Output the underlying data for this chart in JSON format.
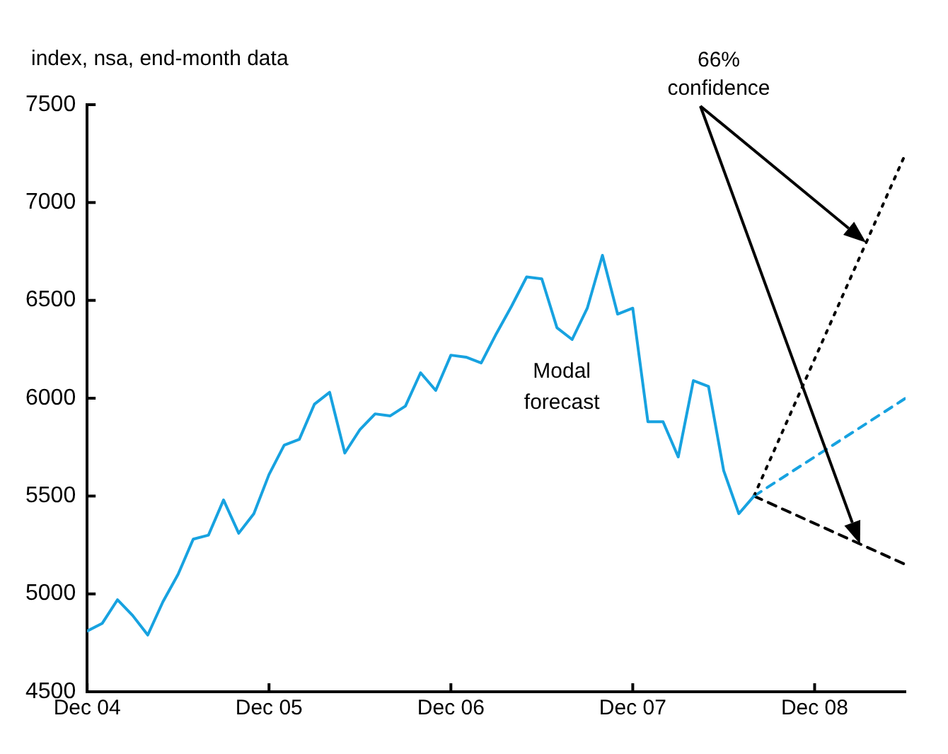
{
  "chart_data": {
    "type": "line",
    "ylabel": "index, nsa, end-month data",
    "xlim": [
      "2004-12",
      "2009-06"
    ],
    "xticks": [
      {
        "value": "2004-12",
        "label": "Dec 04"
      },
      {
        "value": "2005-12",
        "label": "Dec 05"
      },
      {
        "value": "2006-12",
        "label": "Dec 06"
      },
      {
        "value": "2007-12",
        "label": "Dec 07"
      },
      {
        "value": "2008-12",
        "label": "Dec 08"
      }
    ],
    "ylim": [
      4500,
      7500
    ],
    "yticks": [
      4500,
      5000,
      5500,
      6000,
      6500,
      7000,
      7500
    ],
    "grid": false,
    "legend": false,
    "marker": "none",
    "annotations": [
      "66% confidence",
      "Modal forecast"
    ],
    "series": [
      {
        "color": "#17a2e0",
        "line_style": "solid",
        "x": [
          "2004-12",
          "2005-01",
          "2005-02",
          "2005-03",
          "2005-04",
          "2005-05",
          "2005-06",
          "2005-07",
          "2005-08",
          "2005-09",
          "2005-10",
          "2005-11",
          "2005-12",
          "2006-01",
          "2006-02",
          "2006-03",
          "2006-04",
          "2006-05",
          "2006-06",
          "2006-07",
          "2006-08",
          "2006-09",
          "2006-10",
          "2006-11",
          "2006-12",
          "2007-01",
          "2007-02",
          "2007-03",
          "2007-04",
          "2007-05",
          "2007-06",
          "2007-07",
          "2007-08",
          "2007-09",
          "2007-10",
          "2007-11",
          "2007-12",
          "2008-01",
          "2008-02",
          "2008-03",
          "2008-04",
          "2008-05",
          "2008-06",
          "2008-07",
          "2008-08"
        ],
        "values": [
          4810,
          4850,
          4970,
          4890,
          4790,
          4960,
          5100,
          5280,
          5300,
          5480,
          5310,
          5410,
          5610,
          5760,
          5790,
          5970,
          6030,
          5720,
          5840,
          5920,
          5910,
          5960,
          6130,
          6040,
          6220,
          6210,
          6180,
          6330,
          6470,
          6620,
          6610,
          6360,
          6300,
          6460,
          6730,
          6430,
          6460,
          5880,
          5880,
          5700,
          6090,
          6060,
          5630,
          5410,
          5500
        ]
      },
      {
        "color": "#000000",
        "line_style": "dotted",
        "x": [
          "2008-08",
          "2009-06"
        ],
        "values": [
          5500,
          7250
        ]
      },
      {
        "color": "#17a2e0",
        "line_style": "dashed",
        "x": [
          "2008-08",
          "2009-06"
        ],
        "values": [
          5500,
          6000
        ]
      },
      {
        "color": "#000000",
        "line_style": "dashed",
        "x": [
          "2008-08",
          "2009-06"
        ],
        "values": [
          5500,
          5150
        ]
      }
    ]
  }
}
